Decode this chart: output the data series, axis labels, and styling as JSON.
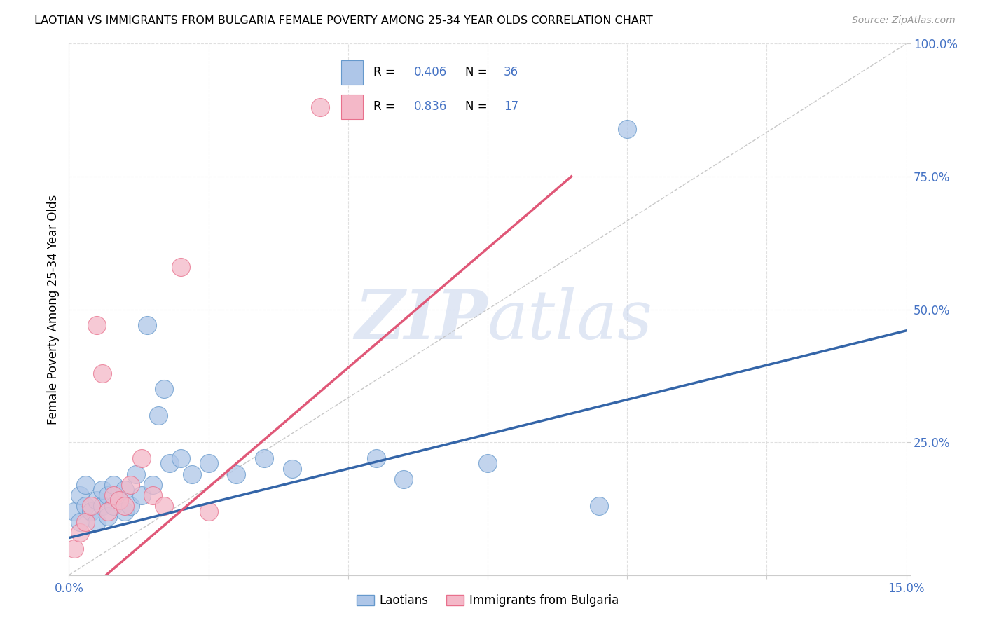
{
  "title": "LAOTIAN VS IMMIGRANTS FROM BULGARIA FEMALE POVERTY AMONG 25-34 YEAR OLDS CORRELATION CHART",
  "source": "Source: ZipAtlas.com",
  "ylabel": "Female Poverty Among 25-34 Year Olds",
  "xlim": [
    0.0,
    0.15
  ],
  "ylim": [
    0.0,
    1.0
  ],
  "laotian_color": "#aec6e8",
  "laotian_edge": "#6699cc",
  "bulgaria_color": "#f4b8c8",
  "bulgaria_edge": "#e8708c",
  "blue_line_color": "#3465a8",
  "pink_line_color": "#e05878",
  "diag_line_color": "#bbbbbb",
  "R_laotian": 0.406,
  "N_laotian": 36,
  "R_bulgaria": 0.836,
  "N_bulgaria": 17,
  "legend_color": "#4472c4",
  "watermark_color": "#ccd8ee",
  "background_color": "#ffffff",
  "grid_color": "#dddddd",
  "laotian_x": [
    0.001,
    0.002,
    0.002,
    0.003,
    0.003,
    0.004,
    0.005,
    0.005,
    0.006,
    0.006,
    0.007,
    0.007,
    0.008,
    0.008,
    0.009,
    0.01,
    0.01,
    0.011,
    0.012,
    0.013,
    0.014,
    0.015,
    0.016,
    0.017,
    0.018,
    0.02,
    0.022,
    0.025,
    0.03,
    0.035,
    0.04,
    0.055,
    0.06,
    0.075,
    0.095,
    0.1
  ],
  "laotian_y": [
    0.12,
    0.1,
    0.15,
    0.13,
    0.17,
    0.12,
    0.14,
    0.1,
    0.13,
    0.16,
    0.11,
    0.15,
    0.13,
    0.17,
    0.14,
    0.12,
    0.16,
    0.13,
    0.19,
    0.15,
    0.47,
    0.17,
    0.3,
    0.35,
    0.21,
    0.22,
    0.19,
    0.21,
    0.19,
    0.22,
    0.2,
    0.22,
    0.18,
    0.21,
    0.13,
    0.84
  ],
  "bulgaria_x": [
    0.001,
    0.002,
    0.003,
    0.004,
    0.005,
    0.006,
    0.007,
    0.008,
    0.009,
    0.01,
    0.011,
    0.013,
    0.015,
    0.017,
    0.02,
    0.025,
    0.045
  ],
  "bulgaria_y": [
    0.05,
    0.08,
    0.1,
    0.13,
    0.47,
    0.38,
    0.12,
    0.15,
    0.14,
    0.13,
    0.17,
    0.22,
    0.15,
    0.13,
    0.58,
    0.12,
    0.88
  ]
}
